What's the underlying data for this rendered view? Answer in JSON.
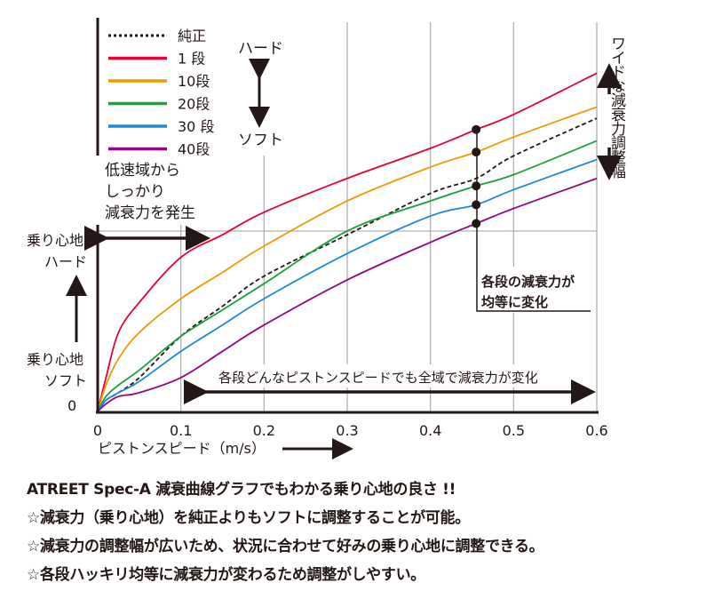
{
  "chart_data": {
    "type": "line",
    "xlabel": "ピストンスピード（m/s）",
    "ylabel_top": [
      "乗り心地",
      "ハード"
    ],
    "ylabel_bottom": [
      "乗り心地",
      "ソフト"
    ],
    "y_zero_label": "0",
    "xlim": [
      0,
      0.6
    ],
    "ylim": [
      0,
      100
    ],
    "x_ticks": [
      "0",
      "0.1",
      "0.2",
      "0.3",
      "0.4",
      "0.5",
      "0.6"
    ],
    "x": [
      0,
      0.01,
      0.025,
      0.05,
      0.1,
      0.15,
      0.2,
      0.3,
      0.4,
      0.455,
      0.5,
      0.6
    ],
    "series": [
      {
        "name": "純正",
        "color": "#231815",
        "dashed": true,
        "values": [
          0,
          3,
          5,
          9,
          20,
          28,
          36,
          47,
          58,
          62,
          68,
          78
        ]
      },
      {
        "name": "1 段",
        "color": "#e60033",
        "values": [
          0,
          9,
          21,
          29,
          41,
          47,
          53,
          62,
          70,
          75,
          79,
          90
        ]
      },
      {
        "name": "10段",
        "color": "#f39800",
        "values": [
          0,
          7,
          14,
          21,
          30,
          37,
          44,
          56,
          65,
          69,
          73,
          81
        ]
      },
      {
        "name": "20段",
        "color": "#1aa23a",
        "values": [
          0,
          4,
          7,
          11,
          20,
          27,
          34,
          48,
          56,
          60,
          63,
          72
        ]
      },
      {
        "name": "30 段",
        "color": "#1e88d8",
        "values": [
          0,
          3,
          5,
          8,
          16,
          23,
          30,
          42,
          52,
          55,
          59,
          67
        ]
      },
      {
        "name": "40段",
        "color": "#920783",
        "values": [
          0,
          2,
          4,
          5,
          9,
          16,
          23,
          35,
          45,
          50,
          54,
          62
        ]
      }
    ],
    "reference_y": 48,
    "marker_x": 0.455,
    "legend_hard": "ハード",
    "legend_soft": "ソフト",
    "annotations": {
      "low_speed": [
        "低速域から",
        "しっかり",
        "減衰力を発生"
      ],
      "even_change": [
        "各段の減衰力が",
        "均等に変化"
      ],
      "all_range": "各段どんなピストンスピードでも全域で減衰力が変化",
      "wide_range": "ワイドな減衰力調整幅"
    }
  },
  "captions": [
    "ATREET Spec-A 減衰曲線グラフでもわかる乗り心地の良さ !!",
    "☆減衰力（乗り心地）を純正よりもソフトに調整することが可能。",
    "☆減衰力の調整幅が広いため、状況に合わせて好みの乗り心地に調整できる。",
    "☆各段ハッキリ均等に減衰力が変わるため調整がしやすい。"
  ]
}
